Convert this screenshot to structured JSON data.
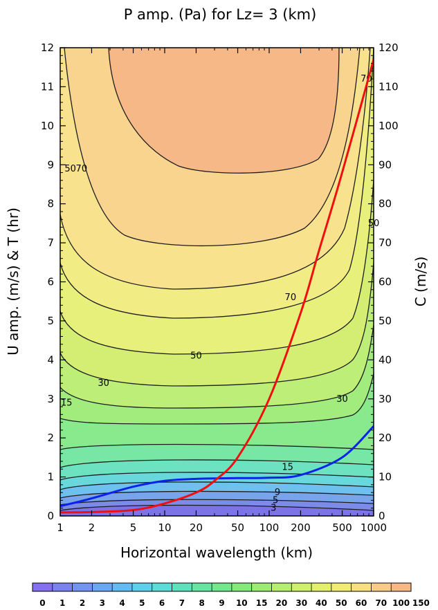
{
  "chart_data": {
    "type": "heatmap",
    "title": "P amp. (Pa) for Lz=  3 (km)",
    "xlabel": "Horizontal wavelength (km)",
    "ylabel": "U amp. (m/s) & T (hr)",
    "y2label": "C (m/s)",
    "x_scale": "log",
    "xlim": [
      1,
      1000
    ],
    "ylim": [
      0,
      12
    ],
    "y2lim": [
      0,
      120
    ],
    "x_ticks": [
      1,
      2,
      5,
      10,
      20,
      50,
      100,
      200,
      500,
      1000
    ],
    "x_tick_labels": [
      "1",
      "2",
      "5",
      "10",
      "20",
      "50",
      "100",
      "200",
      "500",
      "1000"
    ],
    "y_ticks": [
      0,
      1,
      2,
      3,
      4,
      5,
      6,
      7,
      8,
      9,
      10,
      11,
      12
    ],
    "y_tick_labels": [
      "0",
      "1",
      "2",
      "3",
      "4",
      "5",
      "6",
      "7",
      "8",
      "9",
      "10",
      "11",
      "12"
    ],
    "y2_ticks": [
      0,
      10,
      20,
      30,
      40,
      50,
      60,
      70,
      80,
      90,
      100,
      110,
      120
    ],
    "y2_tick_labels": [
      "0",
      "10",
      "20",
      "30",
      "40",
      "50",
      "60",
      "70",
      "80",
      "90",
      "100",
      "110",
      "120"
    ],
    "contour_levels": [
      0,
      1,
      2,
      3,
      4,
      5,
      6,
      7,
      8,
      9,
      10,
      15,
      20,
      30,
      40,
      50,
      60,
      70,
      100,
      150
    ],
    "colorbar_labels": [
      "0",
      "1",
      "2",
      "3",
      "4",
      "5",
      "6",
      "7",
      "8",
      "9",
      "10",
      "15",
      "20",
      "30",
      "40",
      "50",
      "60",
      "70",
      "100",
      "150"
    ],
    "colorbar_colors": [
      "#8470ee",
      "#7b82f0",
      "#7394f2",
      "#6aa8f4",
      "#62bcf4",
      "#5ed0ec",
      "#5cdcd6",
      "#5fe2bc",
      "#66e6a2",
      "#72e88c",
      "#84ea7c",
      "#9cec74",
      "#b6ee70",
      "#cef06c",
      "#e2f06c",
      "#f0ec74",
      "#f6e080",
      "#f8cc86",
      "#f6b884"
    ],
    "contour_labels": [
      {
        "text": "70",
        "x": 1.6,
        "y": 8.9
      },
      {
        "text": "50",
        "x": 1.25,
        "y": 8.9
      },
      {
        "text": "70",
        "x": 160,
        "y": 5.6
      },
      {
        "text": "50",
        "x": 20,
        "y": 4.1
      },
      {
        "text": "30",
        "x": 2.6,
        "y": 3.4
      },
      {
        "text": "15",
        "x": 1.15,
        "y": 2.9
      },
      {
        "text": "30",
        "x": 500,
        "y": 3.0
      },
      {
        "text": "15",
        "x": 150,
        "y": 1.25
      },
      {
        "text": "70",
        "x": 850,
        "y": 11.2
      },
      {
        "text": "50",
        "x": 1000,
        "y": 7.5
      },
      {
        "text": "9",
        "x": 120,
        "y": 0.6
      },
      {
        "text": "5",
        "x": 115,
        "y": 0.4
      },
      {
        "text": "3",
        "x": 110,
        "y": 0.2
      }
    ],
    "u_curve_blue": {
      "name": "U amp.",
      "color": "#0b22e8",
      "x": [
        1,
        2,
        5,
        10,
        20,
        50,
        100,
        200,
        500,
        1000
      ],
      "y": [
        0.25,
        0.45,
        0.75,
        0.9,
        0.95,
        0.97,
        0.98,
        1.05,
        1.5,
        2.3
      ]
    },
    "c_curve_red": {
      "name": "C (m/s)",
      "color": "#ee1010",
      "x": [
        1,
        2,
        5,
        10,
        20,
        30,
        50,
        100,
        200,
        300,
        500,
        1000
      ],
      "y": [
        0.9,
        1.0,
        1.5,
        3.2,
        6.0,
        9.0,
        15.0,
        30.0,
        52.0,
        68.0,
        88.0,
        117.0
      ]
    }
  }
}
